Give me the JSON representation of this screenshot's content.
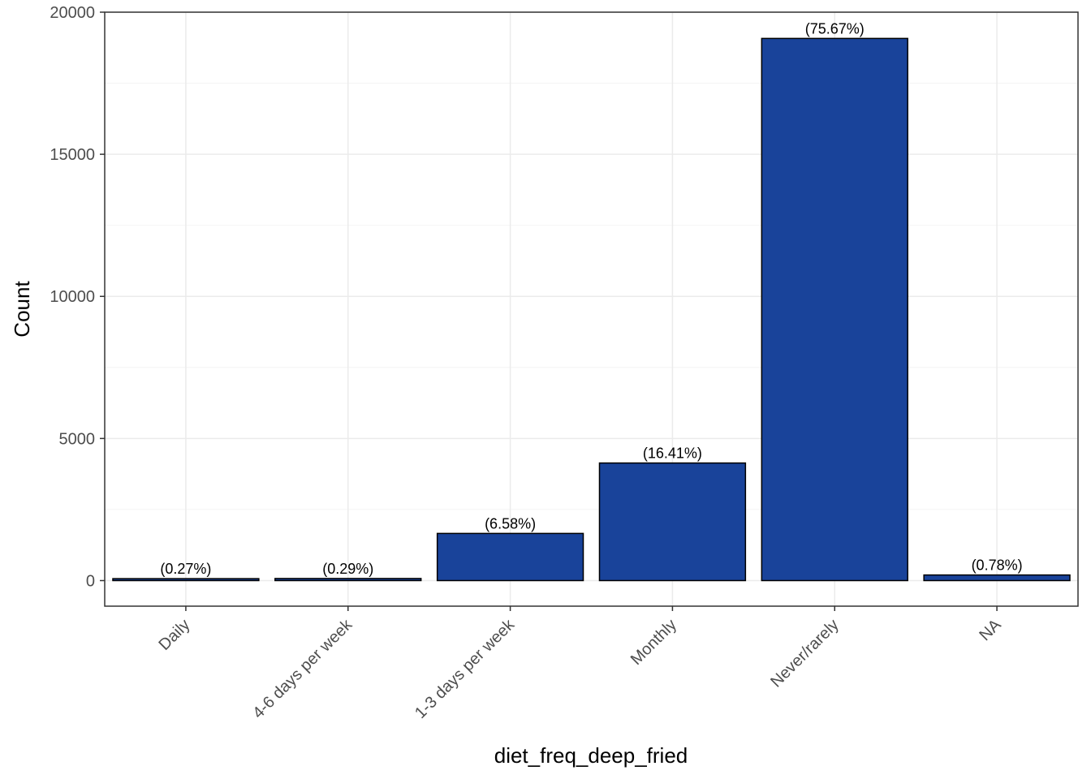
{
  "chart_data": {
    "type": "bar",
    "xlabel": "diet_freq_deep_fried",
    "ylabel": "Count",
    "categories": [
      "Daily",
      "4-6 days per week",
      "1-3 days per week",
      "Monthly",
      "Never/rarely",
      "NA"
    ],
    "values": [
      68,
      73,
      1659,
      4137,
      19076,
      197
    ],
    "data_labels": [
      "(0.27%)",
      "(0.29%)",
      "(6.58%)",
      "(16.41%)",
      "(75.67%)",
      "(0.78%)"
    ],
    "ylim": [
      -900,
      20000
    ],
    "yticks": [
      0,
      5000,
      10000,
      15000,
      20000
    ],
    "ytick_labels": [
      "0",
      "5000",
      "10000",
      "15000",
      "20000"
    ],
    "grid": true,
    "colors": {
      "bar_fill": "#19439A",
      "bar_outline": "#000000"
    }
  }
}
